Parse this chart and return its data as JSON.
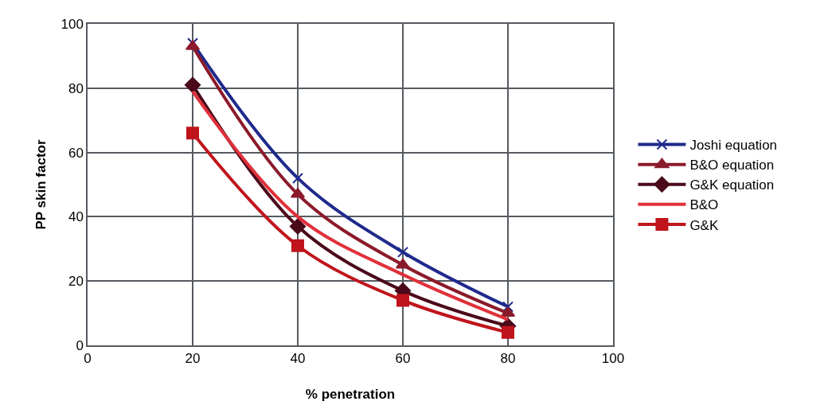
{
  "chart_data": {
    "type": "line",
    "xlabel": "% penetration",
    "ylabel": "PP skin factor",
    "x": [
      20,
      40,
      60,
      80
    ],
    "series": [
      {
        "name": "Joshi equation",
        "color": "#1f2a8c",
        "marker": "cross",
        "values": [
          94,
          52,
          29,
          12
        ]
      },
      {
        "name": "B&O equation",
        "color": "#8b1a2a",
        "marker": "triangle",
        "values": [
          93,
          47,
          25,
          10
        ]
      },
      {
        "name": "G&K equation",
        "color": "#4a0a1a",
        "marker": "diamond",
        "values": [
          81,
          37,
          17,
          6
        ]
      },
      {
        "name": "B&O",
        "color": "#e0303a",
        "marker": "none",
        "values": [
          79,
          40,
          22,
          8
        ]
      },
      {
        "name": "G&K",
        "color": "#c0141c",
        "marker": "square",
        "values": [
          66,
          31,
          14,
          4
        ]
      }
    ],
    "xlim": [
      0,
      100
    ],
    "xticks": [
      0,
      20,
      40,
      60,
      80,
      100
    ],
    "ylim": [
      0,
      100
    ],
    "yticks": [
      0,
      20,
      40,
      60,
      80,
      100
    ],
    "grid": true,
    "legend": "right",
    "line_style": "solid"
  }
}
